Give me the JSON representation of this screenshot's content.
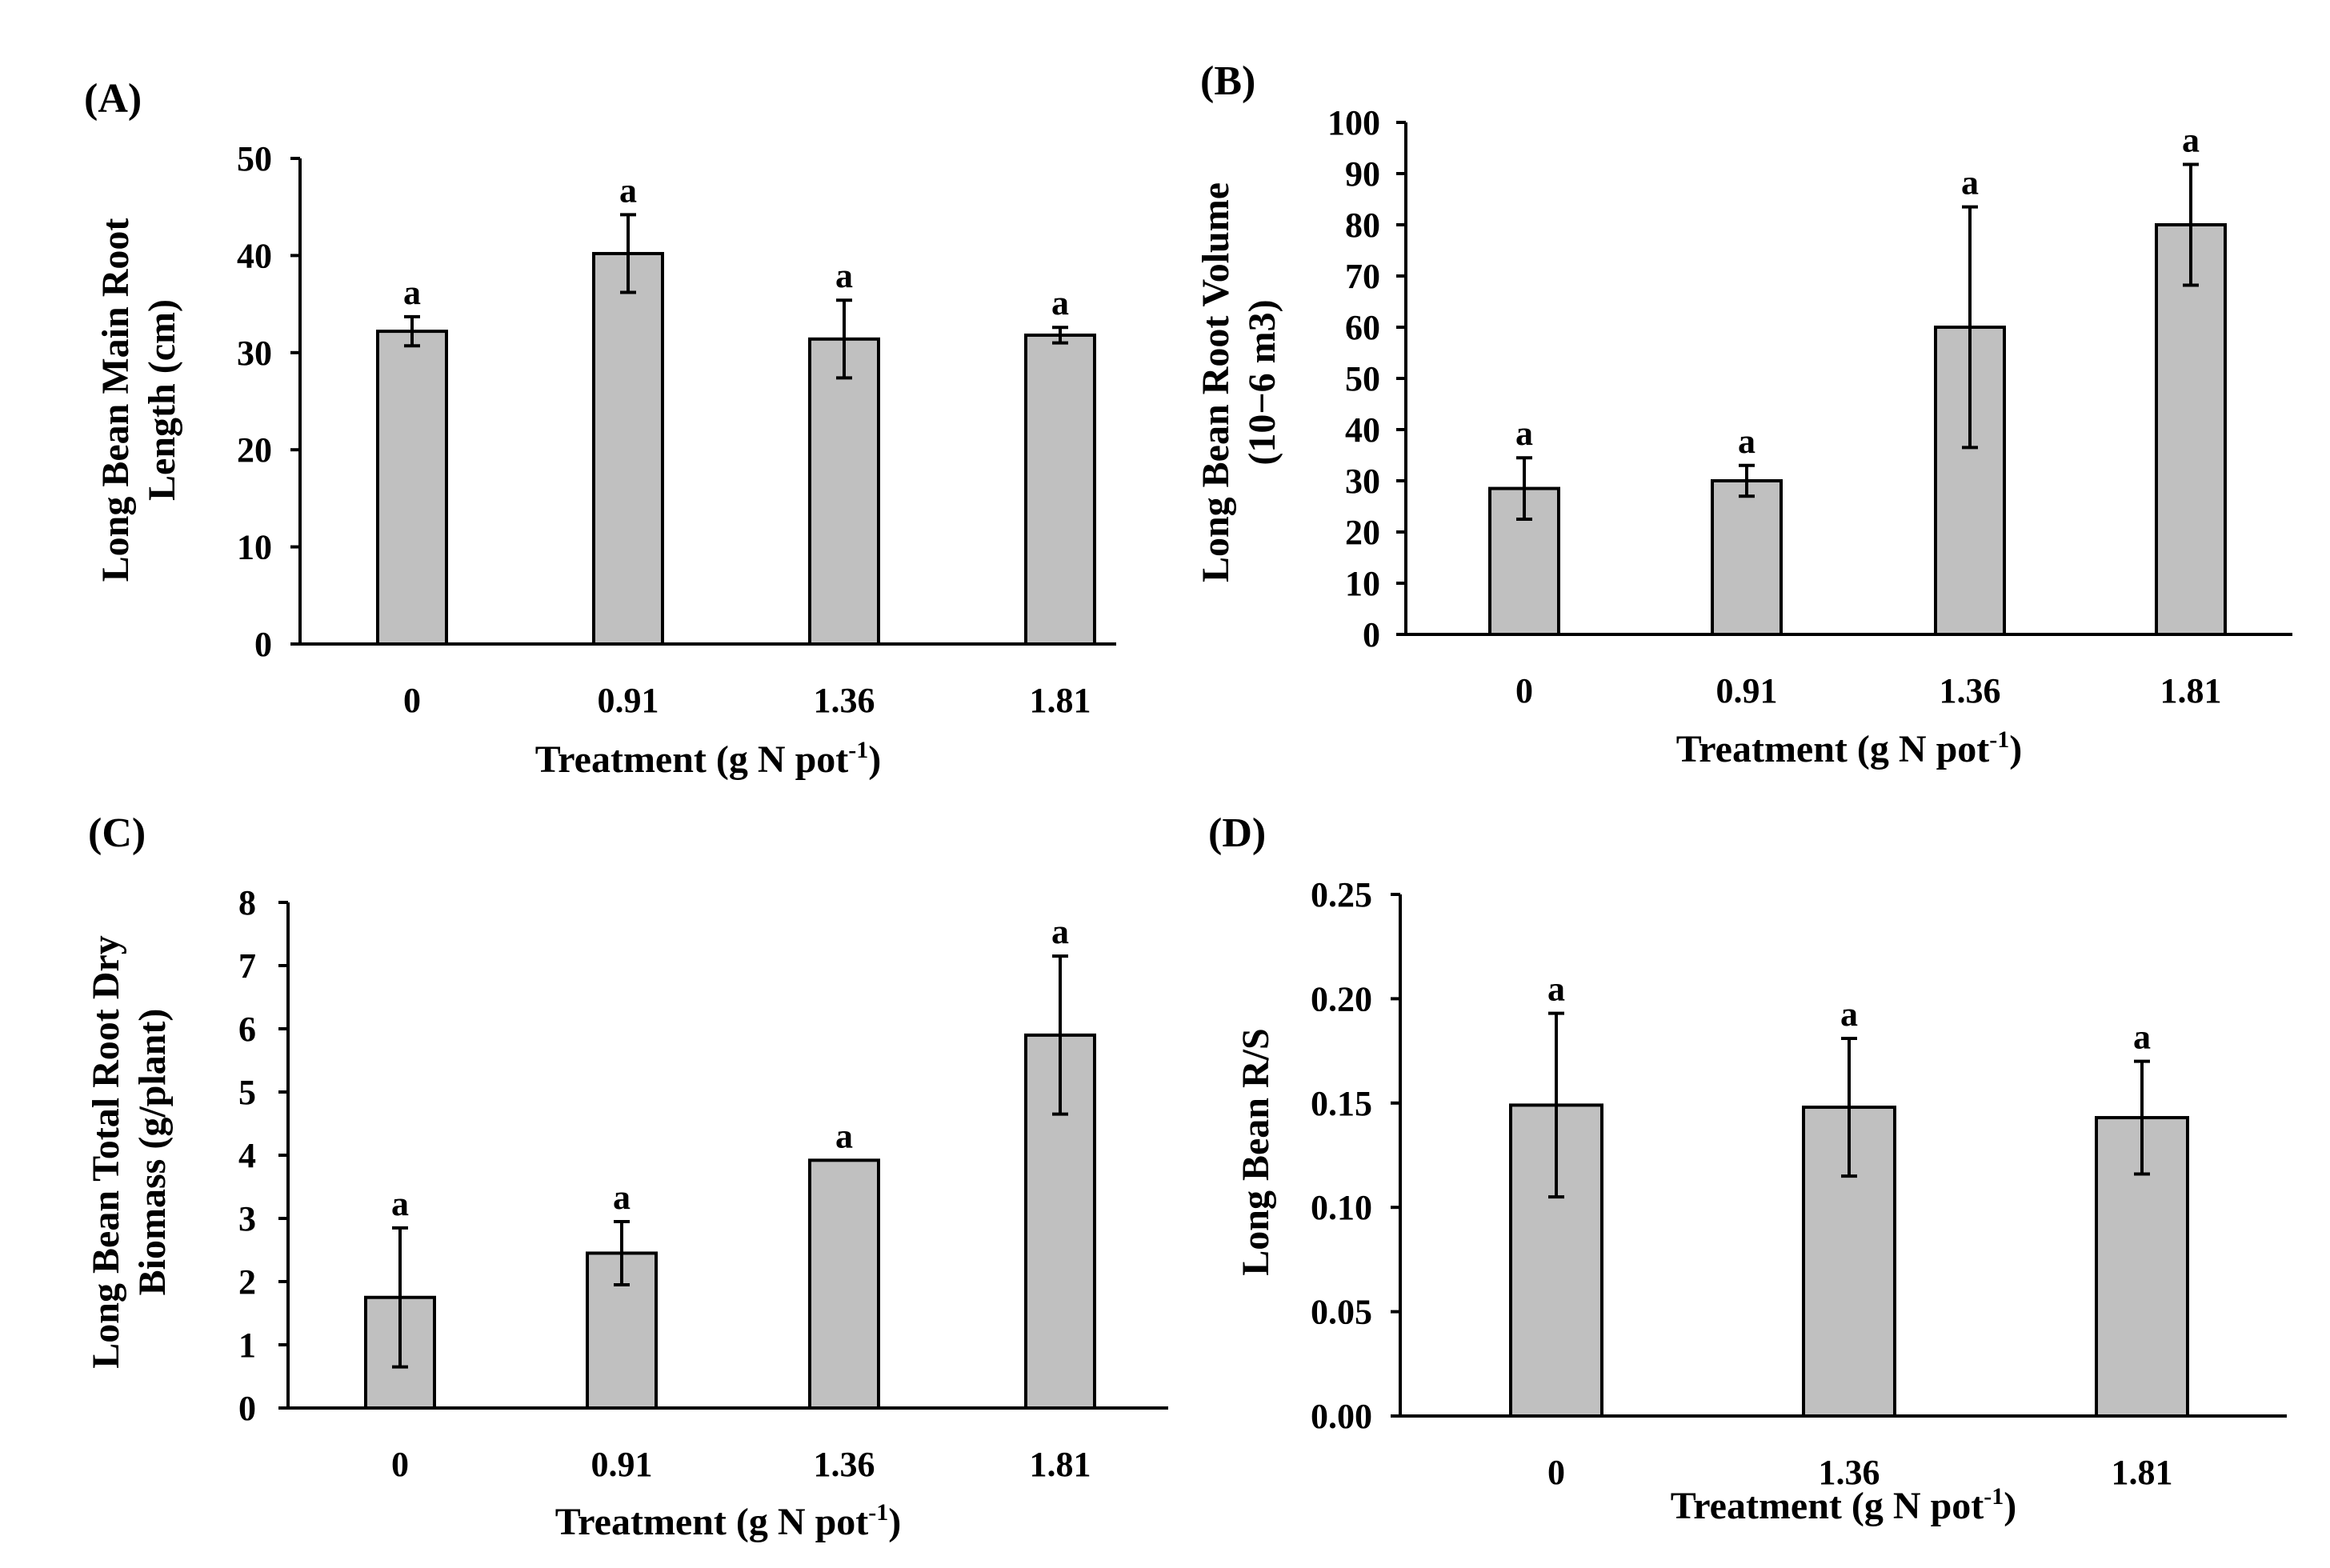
{
  "chart_data": [
    {
      "id": "A",
      "type": "bar",
      "panel_label": "(A)",
      "categories": [
        "0",
        "0.91",
        "1.36",
        "1.81"
      ],
      "values": [
        32.2,
        40.2,
        31.4,
        31.8
      ],
      "errors": [
        1.5,
        4.0,
        4.0,
        0.8
      ],
      "significance": [
        "a",
        "a",
        "a",
        "a"
      ],
      "ylabel_lines": [
        "Long Bean Main Root",
        "Length (cm)"
      ],
      "xlabel": {
        "main": "Treatment (g N pot",
        "sup": "-1",
        "close": ")"
      },
      "ylim": [
        0,
        50
      ],
      "ytick_labels": [
        "0",
        "10",
        "20",
        "30",
        "40",
        "50"
      ]
    },
    {
      "id": "B",
      "type": "bar",
      "panel_label": "(B)",
      "categories": [
        "0",
        "0.91",
        "1.36",
        "1.81"
      ],
      "values": [
        28.5,
        30.0,
        60.0,
        80.0
      ],
      "errors": [
        6.0,
        3.0,
        23.5,
        11.8
      ],
      "significance": [
        "a",
        "a",
        "a",
        "a"
      ],
      "ylabel_lines": [
        "Long Bean Root Volume",
        "(10−6 m3)"
      ],
      "xlabel": {
        "main": "Treatment (g N pot",
        "sup": "-1",
        "close": ")"
      },
      "ylim": [
        0,
        100
      ],
      "ytick_labels": [
        "0",
        "10",
        "20",
        "30",
        "40",
        "50",
        "60",
        "70",
        "80",
        "90",
        "100"
      ]
    },
    {
      "id": "C",
      "type": "bar",
      "panel_label": "(C)",
      "categories": [
        "0",
        "0.91",
        "1.36",
        "1.81"
      ],
      "values": [
        1.75,
        2.45,
        3.92,
        5.9
      ],
      "errors": [
        1.1,
        0.5,
        0.0,
        1.25
      ],
      "significance": [
        "a",
        "a",
        "a",
        "a"
      ],
      "ylabel_lines": [
        "Long Bean Total Root Dry",
        "Biomass (g/plant)"
      ],
      "xlabel": {
        "main": "Treatment (g N pot",
        "sup": "-1",
        "close": ")"
      },
      "ylim": [
        0,
        8
      ],
      "ytick_labels": [
        "0",
        "1",
        "2",
        "3",
        "4",
        "5",
        "6",
        "7",
        "8"
      ]
    },
    {
      "id": "D",
      "type": "bar",
      "panel_label": "(D)",
      "categories": [
        "0",
        "1.36",
        "1.81"
      ],
      "values": [
        0.149,
        0.148,
        0.143
      ],
      "errors": [
        0.044,
        0.033,
        0.027
      ],
      "significance": [
        "a",
        "a",
        "a"
      ],
      "ylabel_lines": [
        "Long Bean R/S"
      ],
      "xlabel": {
        "main": "Treatment (g N pot",
        "sup": "-1",
        "close": ")"
      },
      "ylim": [
        0,
        0.25
      ],
      "ytick_labels": [
        "0.00",
        "0.05",
        "0.10",
        "0.15",
        "0.20",
        "0.25"
      ]
    }
  ],
  "colors": {
    "bar_fill": "#c0c0c0",
    "stroke": "#000000",
    "background": "#ffffff"
  }
}
